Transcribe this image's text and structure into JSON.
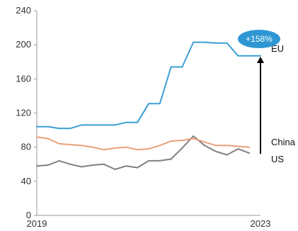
{
  "chart_data": {
    "type": "line",
    "title": "",
    "xlabel": "",
    "ylabel": "",
    "ylim": [
      0,
      240
    ],
    "yticks": [
      0,
      40,
      80,
      120,
      160,
      200,
      240
    ],
    "x_tick_labels": [
      "2019",
      "2023"
    ],
    "x": [
      0,
      1,
      2,
      3,
      4,
      5,
      6,
      7,
      8,
      9,
      10,
      11,
      12,
      13,
      14,
      15,
      16,
      17,
      18,
      19,
      20
    ],
    "grid": false,
    "series": [
      {
        "name": "EU",
        "color": "#3d9fd6",
        "values": [
          104,
          104,
          102,
          102,
          106,
          106,
          106,
          106,
          109,
          109,
          131,
          131,
          174,
          174,
          203,
          203,
          202,
          202,
          187,
          187,
          187
        ]
      },
      {
        "name": "China",
        "color": "#e8a07a",
        "values": [
          92,
          90,
          84,
          83,
          82,
          80,
          77,
          79,
          80,
          77,
          78,
          82,
          87,
          88,
          90,
          86,
          82,
          82,
          81,
          80,
          null
        ]
      },
      {
        "name": "US",
        "color": "#808080",
        "values": [
          58,
          59,
          64,
          60,
          57,
          59,
          60,
          54,
          58,
          56,
          64,
          64,
          66,
          79,
          93,
          82,
          75,
          71,
          78,
          73,
          null
        ]
      }
    ],
    "annotation": {
      "label": "+158%",
      "color": "#2e97d3",
      "arrow_from_value": 72,
      "arrow_to_value": 186
    }
  }
}
